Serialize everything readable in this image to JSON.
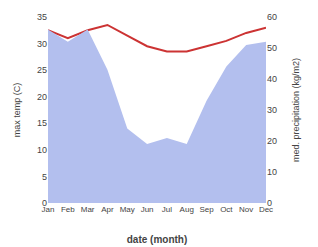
{
  "chart_data": {
    "type": "line",
    "categories": [
      "Jan",
      "Feb",
      "Mar",
      "Apr",
      "May",
      "Jun",
      "Jul",
      "Aug",
      "Sep",
      "Oct",
      "Nov",
      "Dec"
    ],
    "x_label": "date (month)",
    "y_label": "max temp (C)",
    "y2_label": "med. precipitation (kg/m2)",
    "series": [
      {
        "type": "area",
        "axis": "y2",
        "color": "#b3bfee",
        "values": [
          56,
          52,
          56,
          43,
          24,
          19,
          21,
          19,
          33,
          44,
          51,
          52
        ]
      },
      {
        "type": "line",
        "color": "#cc3333",
        "values": [
          32.5,
          31.0,
          32.5,
          33.5,
          31.5,
          29.5,
          28.5,
          28.5,
          29.5,
          30.5,
          32.0,
          33.0
        ]
      }
    ],
    "ylim": [
      0,
      35
    ],
    "yticks": [
      0,
      5,
      10,
      15,
      20,
      25,
      30,
      35
    ],
    "y2lim": [
      0,
      60
    ],
    "y2ticks": [
      0,
      10,
      20,
      30,
      40,
      50,
      60
    ],
    "grid": false
  }
}
